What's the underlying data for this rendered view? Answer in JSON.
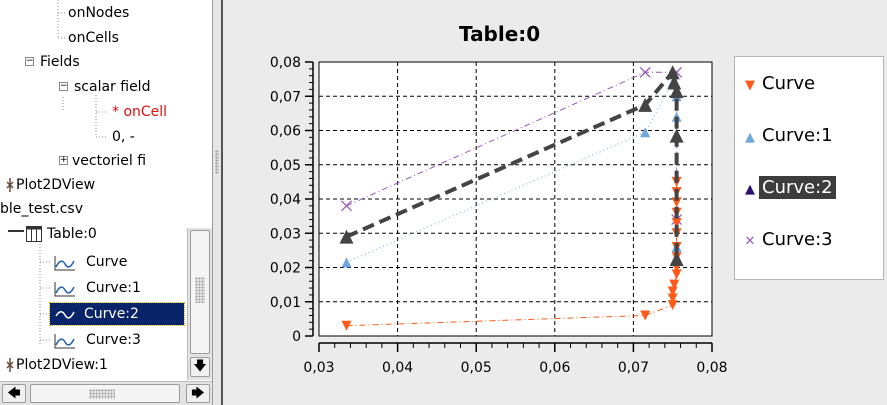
{
  "tree": {
    "items": [
      {
        "label": "onNodes",
        "style": "normal"
      },
      {
        "label": "onCells",
        "style": "normal"
      },
      {
        "label": "Fields",
        "style": "normal",
        "expander": "−"
      },
      {
        "label": "scalar field",
        "style": "normal",
        "expander": "−"
      },
      {
        "label": "* onCell",
        "style": "red"
      },
      {
        "label": "0, -",
        "style": "normal"
      },
      {
        "label": "vectoriel fi",
        "style": "normal",
        "expander": "+"
      },
      {
        "label": "Plot2DView",
        "style": "normal"
      },
      {
        "label": "ble_test.csv",
        "style": "normal"
      },
      {
        "label": "Table:0",
        "style": "normal",
        "icon": "table-icon"
      },
      {
        "label": "Curve",
        "style": "normal",
        "icon": "curve-icon"
      },
      {
        "label": "Curve:1",
        "style": "normal",
        "icon": "curve-icon"
      },
      {
        "label": "Curve:2",
        "style": "selected",
        "icon": "curve-icon"
      },
      {
        "label": "Curve:3",
        "style": "normal",
        "icon": "curve-icon"
      },
      {
        "label": "Plot2DView:1",
        "style": "normal"
      }
    ],
    "scroll": {
      "down_arrow": "🡇",
      "left_arrow": "🡄",
      "right_arrow": "🡆"
    }
  },
  "plot": {
    "title": "Table:0"
  },
  "chart_data": {
    "type": "line",
    "title": "Table:0",
    "xlabel": "",
    "ylabel": "",
    "xlim": [
      0.03,
      0.08
    ],
    "ylim": [
      0,
      0.08
    ],
    "x_ticks": [
      "0,03",
      "0,04",
      "0,05",
      "0,06",
      "0,07",
      "0,08"
    ],
    "y_ticks": [
      "0",
      "0,01",
      "0,02",
      "0,03",
      "0,04",
      "0,05",
      "0,06",
      "0,07",
      "0,08"
    ],
    "grid": true,
    "legend_position": "right",
    "series": [
      {
        "name": "Curve",
        "color": "#ff5a1a",
        "marker": "triangle-down",
        "line": "dash-dot-thin",
        "points": [
          [
            0.0335,
            0.003
          ],
          [
            0.0715,
            0.006
          ],
          [
            0.075,
            0.009
          ],
          [
            0.075,
            0.011
          ],
          [
            0.075,
            0.013
          ],
          [
            0.0752,
            0.015
          ],
          [
            0.0755,
            0.018
          ],
          [
            0.0755,
            0.02
          ],
          [
            0.0755,
            0.023
          ],
          [
            0.0755,
            0.026
          ],
          [
            0.0755,
            0.03
          ],
          [
            0.0755,
            0.033
          ],
          [
            0.0755,
            0.036
          ],
          [
            0.0755,
            0.039
          ],
          [
            0.0755,
            0.042
          ],
          [
            0.0755,
            0.045
          ]
        ]
      },
      {
        "name": "Curve:1",
        "color": "#6fa8dc",
        "marker": "triangle-up",
        "line": "dot-thin",
        "points": [
          [
            0.0335,
            0.0215
          ],
          [
            0.0715,
            0.0595
          ],
          [
            0.075,
            0.074
          ],
          [
            0.0755,
            0.07
          ],
          [
            0.0755,
            0.064
          ],
          [
            0.0755,
            0.026
          ],
          [
            0.0755,
            0.022
          ]
        ]
      },
      {
        "name": "Curve:2",
        "color": "#444444",
        "marker": "triangle-up",
        "line": "dash-thick",
        "points": [
          [
            0.0335,
            0.029
          ],
          [
            0.0715,
            0.0675
          ],
          [
            0.075,
            0.077
          ],
          [
            0.0752,
            0.074
          ],
          [
            0.0755,
            0.0715
          ],
          [
            0.0755,
            0.0585
          ],
          [
            0.0755,
            0.0225
          ]
        ]
      },
      {
        "name": "Curve:3",
        "color": "#9b59b6",
        "marker": "x",
        "line": "dash-dot-thin",
        "points": [
          [
            0.0335,
            0.038
          ],
          [
            0.0715,
            0.077
          ],
          [
            0.0755,
            0.077
          ],
          [
            0.0755,
            0.034
          ]
        ]
      }
    ],
    "selected_series": "Curve:2"
  },
  "legend": {
    "items": [
      {
        "label": "Curve",
        "symbol": "▼",
        "color": "#ff5a1a",
        "selected": false
      },
      {
        "label": "Curve:1",
        "symbol": "▲",
        "color": "#6fa8dc",
        "selected": false
      },
      {
        "label": "Curve:2",
        "symbol": "▲",
        "color": "#2c1070",
        "selected": true
      },
      {
        "label": "Curve:3",
        "symbol": "✕",
        "color": "#9b59b6",
        "selected": false
      }
    ]
  }
}
